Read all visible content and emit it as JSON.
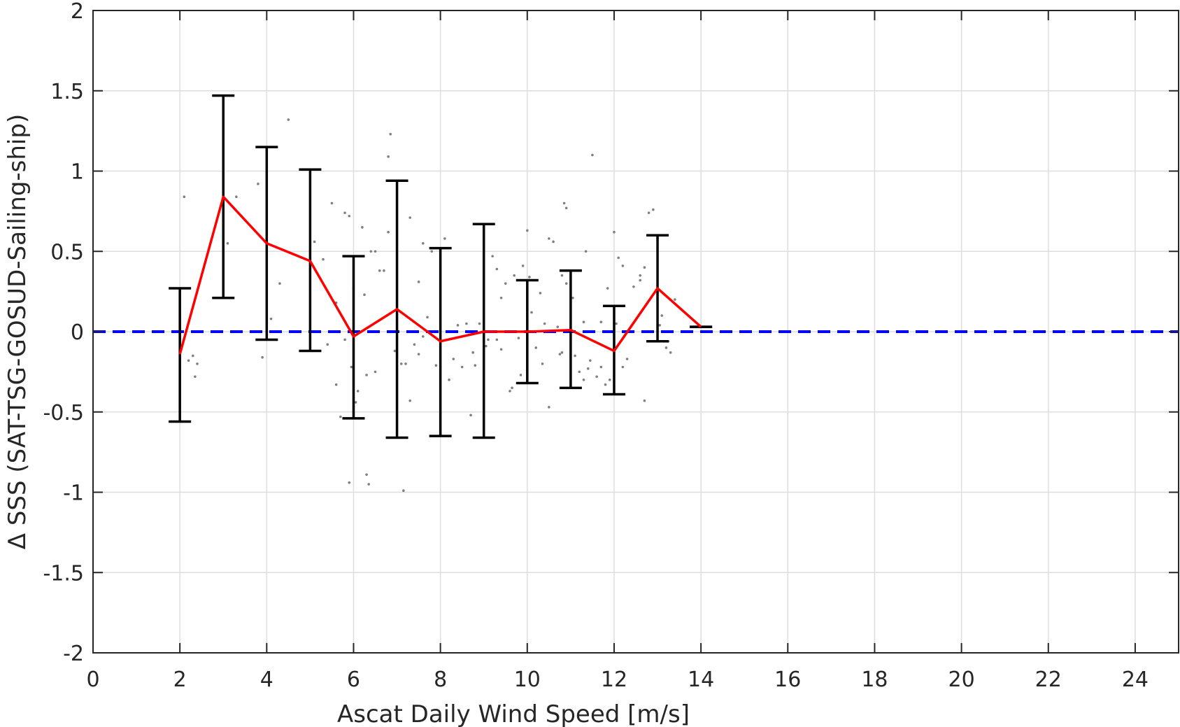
{
  "chart_data": {
    "type": "line",
    "title": "",
    "xlabel": "Ascat Daily Wind Speed [m/s]",
    "ylabel": "Δ SSS (SAT-TSG-GOSUD-Sailing-ship)",
    "xlim": [
      0,
      25
    ],
    "ylim": [
      -2,
      2
    ],
    "grid": true,
    "x_ticks": [
      0,
      2,
      4,
      6,
      8,
      10,
      12,
      14,
      16,
      18,
      20,
      22,
      24
    ],
    "y_ticks": [
      2,
      1.5,
      1,
      0.5,
      0,
      -0.5,
      -1,
      -1.5,
      -2
    ],
    "x_tick_labels": [
      "0",
      "2",
      "4",
      "6",
      "8",
      "10",
      "12",
      "14",
      "16",
      "18",
      "20",
      "22",
      "24"
    ],
    "y_tick_labels": [
      "2",
      "1.5",
      "1",
      "0.5",
      "0",
      "-0.5",
      "-1",
      "-1.5",
      "-2"
    ],
    "reference_line": {
      "y": 0,
      "style": "dashed",
      "color": "#0000ff"
    },
    "series": [
      {
        "kind": "mean_line",
        "color": "#ff0000",
        "x": [
          2,
          3,
          4,
          5,
          6,
          7,
          8,
          9,
          10,
          11,
          12,
          13,
          14
        ],
        "y": [
          -0.14,
          0.84,
          0.55,
          0.44,
          -0.03,
          0.14,
          -0.06,
          0.0,
          0.0,
          0.01,
          -0.12,
          0.27,
          0.03
        ]
      },
      {
        "kind": "error_bars",
        "color": "#000000",
        "x": [
          2,
          3,
          4,
          5,
          6,
          7,
          8,
          9,
          10,
          11,
          12,
          13,
          14
        ],
        "lower": [
          -0.56,
          0.21,
          -0.05,
          -0.12,
          -0.54,
          -0.66,
          -0.65,
          -0.66,
          -0.32,
          -0.35,
          -0.39,
          -0.06,
          0.03
        ],
        "upper": [
          0.27,
          1.47,
          1.15,
          1.01,
          0.47,
          0.94,
          0.52,
          0.67,
          0.32,
          0.38,
          0.16,
          0.6,
          0.03
        ]
      },
      {
        "kind": "scatter",
        "color": "#7f7f7f",
        "points": [
          [
            2.1,
            0.84
          ],
          [
            2.3,
            -0.15
          ],
          [
            2.35,
            -0.28
          ],
          [
            2.2,
            -0.18
          ],
          [
            2.4,
            -0.2
          ],
          [
            3.3,
            0.84
          ],
          [
            3.1,
            0.55
          ],
          [
            3.8,
            0.92
          ],
          [
            3.9,
            -0.16
          ],
          [
            4.1,
            0.08
          ],
          [
            4.5,
            1.32
          ],
          [
            4.3,
            0.3
          ],
          [
            5.1,
            0.56
          ],
          [
            5.3,
            0.45
          ],
          [
            5.4,
            -0.08
          ],
          [
            5.6,
            0.18
          ],
          [
            5.6,
            -0.33
          ],
          [
            5.7,
            -0.53
          ],
          [
            5.5,
            0.8
          ],
          [
            5.8,
            0.74
          ],
          [
            5.9,
            0.72
          ],
          [
            5.95,
            -0.22
          ],
          [
            5.8,
            -0.05
          ],
          [
            6.0,
            0.27
          ],
          [
            6.2,
            0.65
          ],
          [
            6.05,
            -0.44
          ],
          [
            6.1,
            -0.37
          ],
          [
            5.9,
            -0.94
          ],
          [
            6.3,
            -0.89
          ],
          [
            6.35,
            -0.95
          ],
          [
            6.3,
            -0.27
          ],
          [
            6.4,
            0.5
          ],
          [
            6.5,
            0.5
          ],
          [
            6.25,
            0.23
          ],
          [
            6.5,
            -0.25
          ],
          [
            6.6,
            0.38
          ],
          [
            6.7,
            0.38
          ],
          [
            6.8,
            0.62
          ],
          [
            6.85,
            1.23
          ],
          [
            6.8,
            1.09
          ],
          [
            6.95,
            -0.12
          ],
          [
            7.1,
            -0.2
          ],
          [
            7.15,
            -0.99
          ],
          [
            7.2,
            -0.2
          ],
          [
            7.3,
            -0.43
          ],
          [
            7.3,
            0.71
          ],
          [
            7.4,
            -0.08
          ],
          [
            7.5,
            0.31
          ],
          [
            7.5,
            -0.14
          ],
          [
            7.6,
            0.55
          ],
          [
            7.6,
            -0.03
          ],
          [
            7.7,
            0.09
          ],
          [
            7.8,
            0.5
          ],
          [
            7.9,
            -0.21
          ],
          [
            8.1,
            0.58
          ],
          [
            8.2,
            -0.3
          ],
          [
            8.3,
            -0.17
          ],
          [
            8.4,
            0.04
          ],
          [
            8.5,
            -0.22
          ],
          [
            8.6,
            0.05
          ],
          [
            8.7,
            -0.52
          ],
          [
            8.75,
            -0.13
          ],
          [
            8.8,
            -0.21
          ],
          [
            8.9,
            0.05
          ],
          [
            9.0,
            0.09
          ],
          [
            9.05,
            -0.09
          ],
          [
            9.1,
            -0.05
          ],
          [
            9.2,
            0.47
          ],
          [
            9.3,
            0.39
          ],
          [
            9.3,
            -0.05
          ],
          [
            9.4,
            0.21
          ],
          [
            9.4,
            -0.11
          ],
          [
            9.5,
            0.3
          ],
          [
            9.6,
            -0.37
          ],
          [
            9.65,
            -0.35
          ],
          [
            9.7,
            0.35
          ],
          [
            9.8,
            -0.04
          ],
          [
            9.85,
            -0.27
          ],
          [
            9.9,
            0.41
          ],
          [
            10.0,
            0.63
          ],
          [
            10.05,
            0.34
          ],
          [
            10.1,
            0.12
          ],
          [
            10.2,
            -0.1
          ],
          [
            10.3,
            0.24
          ],
          [
            10.35,
            -0.2
          ],
          [
            10.4,
            0.05
          ],
          [
            10.5,
            0.58
          ],
          [
            10.5,
            -0.47
          ],
          [
            10.6,
            0.56
          ],
          [
            10.7,
            0.03
          ],
          [
            10.75,
            -0.14
          ],
          [
            10.8,
            -0.13
          ],
          [
            10.8,
            0.35
          ],
          [
            10.9,
            0.3
          ],
          [
            10.85,
            0.8
          ],
          [
            10.9,
            0.77
          ],
          [
            11.0,
            -0.14
          ],
          [
            11.05,
            0.21
          ],
          [
            11.1,
            -0.15
          ],
          [
            11.2,
            -0.25
          ],
          [
            11.3,
            -0.3
          ],
          [
            11.35,
            0.5
          ],
          [
            11.3,
            0.06
          ],
          [
            11.4,
            -0.23
          ],
          [
            11.45,
            -0.18
          ],
          [
            11.5,
            1.1
          ],
          [
            11.6,
            -0.28
          ],
          [
            11.7,
            -0.22
          ],
          [
            11.7,
            0.06
          ],
          [
            11.8,
            -0.33
          ],
          [
            11.85,
            0.27
          ],
          [
            11.9,
            -0.3
          ],
          [
            12.0,
            0.62
          ],
          [
            12.05,
            0.05
          ],
          [
            12.1,
            0.46
          ],
          [
            12.2,
            0.41
          ],
          [
            12.2,
            -0.22
          ],
          [
            12.3,
            -0.17
          ],
          [
            12.45,
            0.28
          ],
          [
            12.6,
            0.32
          ],
          [
            12.6,
            0.35
          ],
          [
            12.7,
            0.4
          ],
          [
            12.7,
            -0.43
          ],
          [
            12.8,
            0.74
          ],
          [
            12.9,
            0.76
          ],
          [
            13.0,
            0.58
          ],
          [
            13.05,
            0.04
          ],
          [
            13.1,
            0.1
          ],
          [
            13.2,
            -0.1
          ],
          [
            13.25,
            -0.06
          ],
          [
            13.3,
            -0.13
          ],
          [
            13.4,
            0.2
          ]
        ]
      }
    ]
  }
}
